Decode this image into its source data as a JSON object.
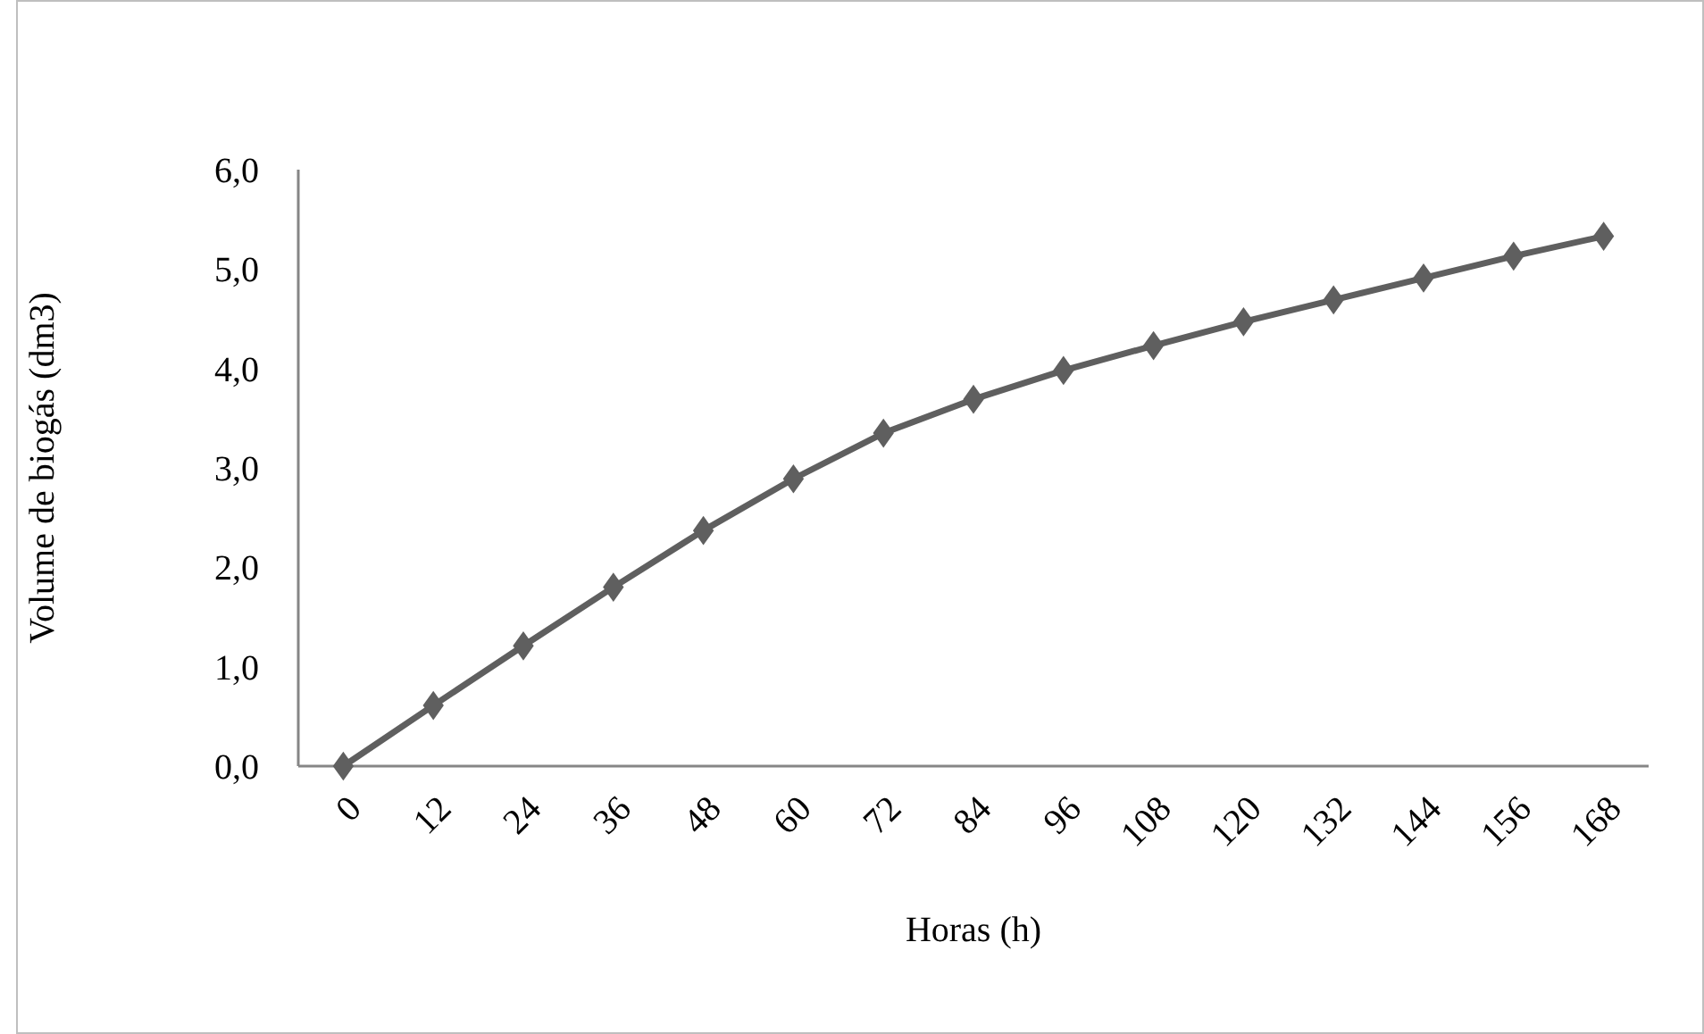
{
  "chart_data": {
    "type": "line",
    "xlabel": "Horas (h)",
    "ylabel": "Volume de biogás (dm3)",
    "categories": [
      "0",
      "12",
      "24",
      "36",
      "48",
      "60",
      "72",
      "84",
      "96",
      "108",
      "120",
      "132",
      "144",
      "156",
      "168"
    ],
    "series": [
      {
        "color": "#5f5f5f",
        "values": [
          0,
          0.61,
          1.21,
          1.8,
          2.37,
          2.89,
          3.35,
          3.69,
          3.98,
          4.23,
          4.47,
          4.69,
          4.91,
          5.13,
          5.33
        ]
      }
    ],
    "ylim": [
      0,
      6
    ],
    "yticks": [
      {
        "value": 0,
        "label": "0,0"
      },
      {
        "value": 1,
        "label": "1,0"
      },
      {
        "value": 2,
        "label": "2,0"
      },
      {
        "value": 3,
        "label": "3,0"
      },
      {
        "value": 4,
        "label": "4,0"
      },
      {
        "value": 5,
        "label": "5,0"
      },
      {
        "value": 6,
        "label": "6,0"
      }
    ],
    "grid": false,
    "marker": "diamond",
    "line_style": "solid"
  }
}
